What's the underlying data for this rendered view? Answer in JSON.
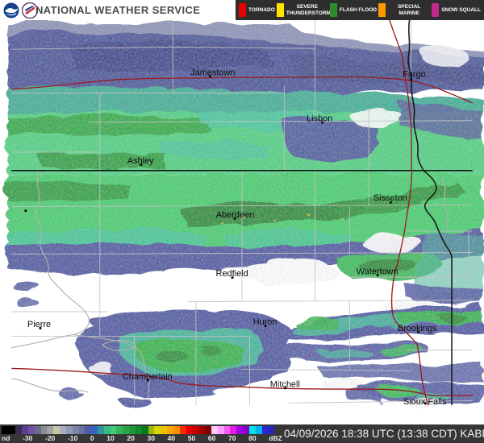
{
  "header": {
    "title": "NATIONAL WEATHER SERVICE",
    "logos": [
      "noaa-logo",
      "nws-logo"
    ],
    "legend": [
      {
        "label": "TORNADO",
        "color": "#e60000"
      },
      {
        "label": "SEVERE THUNDERSTORM",
        "color": "#ffe400"
      },
      {
        "label": "FLASH FLOOD",
        "color": "#2e8b2e"
      },
      {
        "label": "SPECIAL MARINE",
        "color": "#ff9900"
      },
      {
        "label": "SNOW SQUALL",
        "color": "#c3288d"
      }
    ]
  },
  "map": {
    "cities": [
      {
        "name": "Jamestown"
      },
      {
        "name": "Fargo"
      },
      {
        "name": "Lisbon"
      },
      {
        "name": "Ashley"
      },
      {
        "name": "Sisseton"
      },
      {
        "name": "Aberdeen"
      },
      {
        "name": "Redfield"
      },
      {
        "name": "Watertown"
      },
      {
        "name": "Pierre"
      },
      {
        "name": "Huron"
      },
      {
        "name": "Brookings"
      },
      {
        "name": "Chamberlain"
      },
      {
        "name": "Mitchell"
      },
      {
        "name": "Sioux Falls"
      }
    ]
  },
  "statusbar": {
    "timestamp": "04/09/2026 18:38 UTC (13:38 CDT) KABR",
    "colorbar": {
      "ticks": [
        "nd",
        "-30",
        "-20",
        "-10",
        "0",
        "10",
        "20",
        "30",
        "40",
        "50",
        "60",
        "70",
        "80",
        "dBZ"
      ],
      "colors": [
        "#000000",
        "#3a2a50",
        "#5b3f8e",
        "#7351a8",
        "#6b6b85",
        "#8c8c92",
        "#a3a39b",
        "#c6c6a6",
        "#a9aec2",
        "#9399b5",
        "#7d84ab",
        "#6870a4",
        "#4d5ba5",
        "#3465c0",
        "#2f9898",
        "#3cba8c",
        "#41cc7d",
        "#37b35a",
        "#2aa34a",
        "#1d9638",
        "#108a29",
        "#05791b",
        "#9ab800",
        "#d6d600",
        "#e6c400",
        "#f5a800",
        "#fa8d00",
        "#fb2a00",
        "#e60000",
        "#c80000",
        "#a30000",
        "#7e0000",
        "#ffc9ff",
        "#ff9cff",
        "#f25ff2",
        "#e01fe0",
        "#a500df",
        "#8c00c8",
        "#00e3e3",
        "#00b4f0",
        "#2a2ad0",
        "#2626b8"
      ]
    }
  }
}
